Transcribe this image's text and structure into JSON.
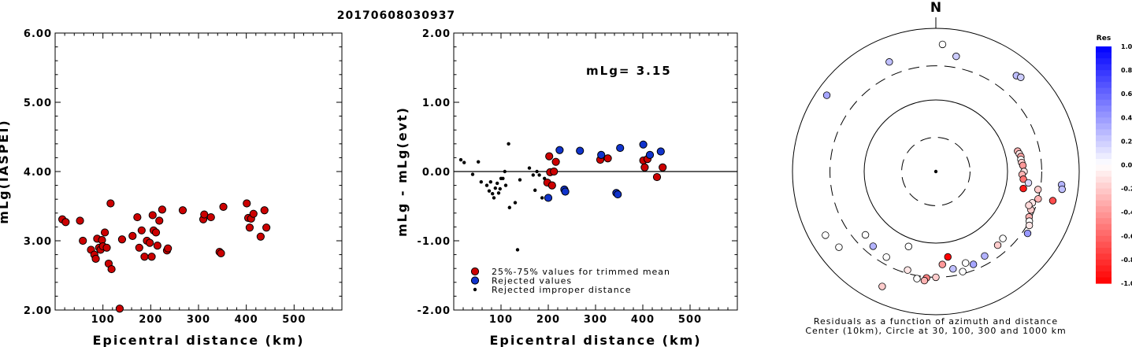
{
  "title": "20170608030937",
  "chart_data": [
    {
      "type": "scatter",
      "xlabel": "Epicentral distance (km)",
      "ylabel": "mLg(IASPEI)",
      "xlim": [
        0,
        600
      ],
      "ylim": [
        2.0,
        6.0
      ],
      "xticks": [
        "100",
        "200",
        "300",
        "400",
        "500"
      ],
      "yticks": [
        "2.00",
        "3.00",
        "4.00",
        "5.00",
        "6.00"
      ],
      "series": [
        {
          "color": "#cc0000",
          "points": [
            [
              15,
              3.31
            ],
            [
              22,
              3.27
            ],
            [
              52,
              3.29
            ],
            [
              58,
              3.0
            ],
            [
              75,
              2.87
            ],
            [
              82,
              2.8
            ],
            [
              85,
              2.74
            ],
            [
              88,
              3.03
            ],
            [
              92,
              2.9
            ],
            [
              95,
              2.87
            ],
            [
              98,
              3.01
            ],
            [
              100,
              2.92
            ],
            [
              104,
              3.12
            ],
            [
              108,
              2.9
            ],
            [
              112,
              2.67
            ],
            [
              116,
              3.54
            ],
            [
              118,
              2.59
            ],
            [
              135,
              2.02
            ],
            [
              140,
              3.02
            ],
            [
              162,
              3.07
            ],
            [
              172,
              3.34
            ],
            [
              176,
              2.9
            ],
            [
              181,
              3.15
            ],
            [
              187,
              2.77
            ],
            [
              192,
              3.0
            ],
            [
              198,
              2.97
            ],
            [
              202,
              2.77
            ],
            [
              204,
              3.37
            ],
            [
              206,
              3.15
            ],
            [
              211,
              3.12
            ],
            [
              214,
              2.93
            ],
            [
              218,
              3.29
            ],
            [
              224,
              3.45
            ],
            [
              234,
              2.86
            ],
            [
              236,
              2.89
            ],
            [
              267,
              3.44
            ],
            [
              310,
              3.31
            ],
            [
              312,
              3.38
            ],
            [
              326,
              3.34
            ],
            [
              344,
              2.84
            ],
            [
              347,
              2.82
            ],
            [
              352,
              3.49
            ],
            [
              401,
              3.54
            ],
            [
              404,
              3.33
            ],
            [
              407,
              3.19
            ],
            [
              410,
              3.32
            ],
            [
              415,
              3.39
            ],
            [
              430,
              3.06
            ],
            [
              438,
              3.44
            ],
            [
              442,
              3.19
            ]
          ]
        }
      ]
    },
    {
      "type": "scatter",
      "xlabel": "Epicentral distance (km)",
      "ylabel": "mLg - mLg(evt)",
      "xlim": [
        0,
        600
      ],
      "ylim": [
        -2.0,
        2.0
      ],
      "xticks": [
        "100",
        "200",
        "300",
        "400",
        "500"
      ],
      "yticks": [
        "-2.00",
        "-1.00",
        "0.00",
        "1.00",
        "2.00"
      ],
      "annotation": "mLg= 3.15",
      "zero_line": true,
      "legend": [
        "25%-75% values for trimmed mean",
        "Rejected values",
        "Rejected improper distance"
      ],
      "series": [
        {
          "name": "25%-75% values for trimmed mean",
          "color": "#cc0000",
          "points": [
            [
              198,
              -0.16
            ],
            [
              202,
              0.22
            ],
            [
              204,
              -0.01
            ],
            [
              208,
              -0.2
            ],
            [
              212,
              0.0
            ],
            [
              216,
              0.14
            ],
            [
              310,
              0.17
            ],
            [
              326,
              0.19
            ],
            [
              401,
              0.16
            ],
            [
              404,
              0.06
            ],
            [
              410,
              0.18
            ],
            [
              430,
              -0.08
            ],
            [
              442,
              0.06
            ]
          ]
        },
        {
          "name": "Rejected values",
          "color": "#1033cc",
          "points": [
            [
              200,
              -0.38
            ],
            [
              224,
              0.31
            ],
            [
              234,
              -0.26
            ],
            [
              236,
              -0.29
            ],
            [
              267,
              0.3
            ],
            [
              312,
              0.24
            ],
            [
              344,
              -0.31
            ],
            [
              347,
              -0.33
            ],
            [
              352,
              0.34
            ],
            [
              401,
              0.39
            ],
            [
              415,
              0.24
            ],
            [
              438,
              0.29
            ]
          ]
        },
        {
          "name": "Rejected improper distance",
          "color": "#000000",
          "points": [
            [
              15,
              0.17
            ],
            [
              22,
              0.13
            ],
            [
              40,
              -0.04
            ],
            [
              52,
              0.14
            ],
            [
              58,
              -0.15
            ],
            [
              70,
              -0.2
            ],
            [
              75,
              -0.28
            ],
            [
              78,
              -0.15
            ],
            [
              82,
              -0.32
            ],
            [
              85,
              -0.38
            ],
            [
              88,
              -0.24
            ],
            [
              92,
              -0.17
            ],
            [
              95,
              -0.31
            ],
            [
              98,
              -0.25
            ],
            [
              100,
              -0.1
            ],
            [
              104,
              -0.1
            ],
            [
              108,
              0.0
            ],
            [
              110,
              -0.2
            ],
            [
              116,
              0.4
            ],
            [
              118,
              -0.52
            ],
            [
              130,
              -0.45
            ],
            [
              135,
              -1.13
            ],
            [
              140,
              -0.12
            ],
            [
              160,
              0.05
            ],
            [
              168,
              -0.05
            ],
            [
              172,
              -0.27
            ],
            [
              176,
              0.0
            ],
            [
              181,
              -0.05
            ],
            [
              187,
              -0.38
            ],
            [
              192,
              -0.1
            ]
          ]
        }
      ]
    },
    {
      "type": "polar",
      "north_label": "N",
      "caption_line1": "Residuals as a function of azimuth and distance",
      "caption_line2": "Center (10km), Circle at 30, 100, 300 and 1000 km",
      "colorbar_title": "Res",
      "colorbar_ticks": [
        "1.0",
        "0.8",
        "0.6",
        "0.4",
        "0.2",
        "0.0",
        "-0.2",
        "-0.4",
        "-0.6",
        "-0.8",
        "-1.0"
      ],
      "points": [
        {
          "az": 3,
          "dist": 600,
          "res": 0.0
        },
        {
          "az": 40,
          "dist": 560,
          "res": 0.25
        },
        {
          "az": 42,
          "dist": 590,
          "res": 0.2
        },
        {
          "az": 305,
          "dist": 720,
          "res": 0.35
        },
        {
          "az": 337,
          "dist": 460,
          "res": 0.25
        },
        {
          "az": 10,
          "dist": 430,
          "res": 0.2
        },
        {
          "az": 76,
          "dist": 150,
          "res": -0.3
        },
        {
          "az": 78,
          "dist": 155,
          "res": -0.1
        },
        {
          "az": 80,
          "dist": 160,
          "res": -0.35
        },
        {
          "az": 82,
          "dist": 158,
          "res": 0.0
        },
        {
          "az": 84,
          "dist": 160,
          "res": -0.2
        },
        {
          "az": 86,
          "dist": 165,
          "res": -0.4
        },
        {
          "az": 90,
          "dist": 170,
          "res": -0.1
        },
        {
          "az": 92,
          "dist": 160,
          "res": -0.3
        },
        {
          "az": 95,
          "dist": 168,
          "res": -0.55
        },
        {
          "az": 97,
          "dist": 200,
          "res": 0.15
        },
        {
          "az": 101,
          "dist": 175,
          "res": -0.9
        },
        {
          "az": 105,
          "dist": 300,
          "res": -0.3
        },
        {
          "az": 100,
          "dist": 280,
          "res": -0.2
        },
        {
          "az": 96,
          "dist": 580,
          "res": 0.3
        },
        {
          "az": 98,
          "dist": 600,
          "res": 0.25
        },
        {
          "az": 104,
          "dist": 480,
          "res": -0.7
        },
        {
          "az": 108,
          "dist": 260,
          "res": -0.1
        },
        {
          "az": 112,
          "dist": 270,
          "res": -0.2
        },
        {
          "az": 116,
          "dist": 280,
          "res": -0.3
        },
        {
          "az": 118,
          "dist": 300,
          "res": 0.0
        },
        {
          "az": 120,
          "dist": 320,
          "res": -0.1
        },
        {
          "az": 124,
          "dist": 350,
          "res": 0.4
        },
        {
          "az": 135,
          "dist": 210,
          "res": 0.0
        },
        {
          "az": 140,
          "dist": 220,
          "res": -0.2
        },
        {
          "az": 150,
          "dist": 230,
          "res": 0.3
        },
        {
          "az": 158,
          "dist": 250,
          "res": 0.35
        },
        {
          "az": 162,
          "dist": 220,
          "res": 0.0
        },
        {
          "az": 170,
          "dist": 240,
          "res": 0.25
        },
        {
          "az": 165,
          "dist": 280,
          "res": 0.0
        },
        {
          "az": 172,
          "dist": 160,
          "res": -1.0
        },
        {
          "az": 176,
          "dist": 200,
          "res": -0.4
        },
        {
          "az": 180,
          "dist": 300,
          "res": -0.2
        },
        {
          "az": 185,
          "dist": 310,
          "res": -0.5
        },
        {
          "az": 186,
          "dist": 340,
          "res": -0.3
        },
        {
          "az": 190,
          "dist": 330,
          "res": 0.0
        },
        {
          "az": 196,
          "dist": 270,
          "res": -0.1
        },
        {
          "az": 200,
          "dist": 130,
          "res": 0.0
        },
        {
          "az": 210,
          "dist": 240,
          "res": 0.0
        },
        {
          "az": 220,
          "dist": 230,
          "res": 0.3
        },
        {
          "az": 228,
          "dist": 210,
          "res": 0.0
        },
        {
          "az": 232,
          "dist": 520,
          "res": 0.0
        },
        {
          "az": 240,
          "dist": 600,
          "res": 0.0
        },
        {
          "az": 205,
          "dist": 590,
          "res": -0.2
        },
        {
          "az": 110,
          "dist": 240,
          "res": -0.15
        }
      ]
    }
  ]
}
